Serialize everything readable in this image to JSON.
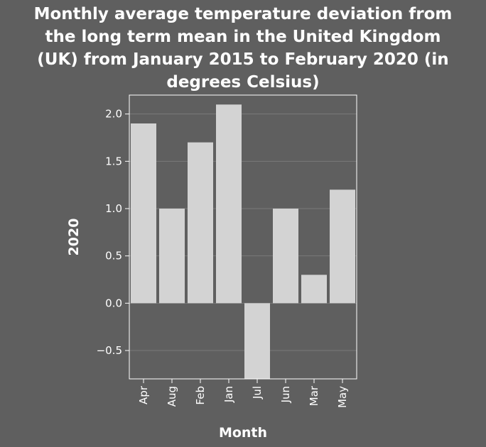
{
  "chart_data": {
    "type": "bar",
    "title_lines": [
      "Monthly average temperature deviation from",
      "the long term mean in the United Kingdom",
      "(UK) from January 2015 to February 2020 (in",
      "degrees Celsius)"
    ],
    "title": "Monthly average temperature deviation from the long term mean in the United Kingdom (UK) from January 2015 to February 2020 (in degrees Celsius)",
    "xlabel": "Month",
    "ylabel": "2020",
    "categories": [
      "Apr",
      "Aug",
      "Feb",
      "Jan",
      "Jul",
      "Jun",
      "Mar",
      "May"
    ],
    "values": [
      1.9,
      1.0,
      1.7,
      2.1,
      -0.8,
      1.0,
      0.3,
      1.2
    ],
    "ylim": [
      -0.8,
      2.2
    ],
    "yticks": [
      -0.5,
      0.0,
      0.5,
      1.0,
      1.5,
      2.0
    ],
    "ytick_labels": [
      "−0.5",
      "0.0",
      "0.5",
      "1.0",
      "1.5",
      "2.0"
    ],
    "grid": true,
    "colors": {
      "background": "#5f5f5f",
      "bar": "#d3d3d3",
      "axis": "#ffffff",
      "grid": "#7a7a7a"
    }
  }
}
